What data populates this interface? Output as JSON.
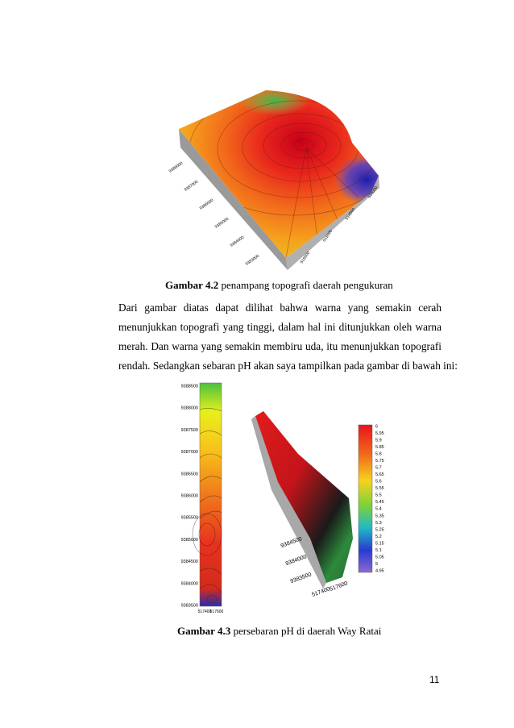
{
  "figure_4_2": {
    "axis_labels_left": [
      "9388000",
      "9387000",
      "9386000",
      "9385000",
      "9384000",
      "9383000"
    ],
    "axis_labels_bottom": [
      "515500",
      "515000",
      "514500",
      "514000"
    ],
    "caption_label": "Gambar 4.2",
    "caption_text": "penampang topografi daerah pengukuran"
  },
  "paragraph": {
    "lines": [
      "Dari gambar diatas dapat dilihat bahwa warna yang semakin cerah",
      "menunjukkan topografi yang tinggi, dalam hal ini ditunjukkan oleh warna",
      "merah. Dan warna yang semakin membiru uda, itu menunjukkan topografi",
      "rendah. Sedangkan sebaran pH akan saya tampilkan pada gambar di bawah ini:"
    ]
  },
  "figure_4_3": {
    "map_y_labels": [
      "9388500",
      "9388000",
      "9387500",
      "9387000",
      "9386500",
      "9386000",
      "9385500",
      "9385000",
      "9384500",
      "9384000",
      "9383500"
    ],
    "map_x_labels": [
      "517400",
      "517600"
    ],
    "surface_y_labels": [
      "9384500",
      "9384000",
      "9383500"
    ],
    "surface_x_labels": [
      "517400",
      "517600"
    ],
    "legend_labels": [
      "6",
      "5.95",
      "5.9",
      "5.85",
      "5.8",
      "5.75",
      "5.7",
      "5.65",
      "5.6",
      "5.55",
      "5.5",
      "5.45",
      "5.4",
      "5.35",
      "5.3",
      "5.25",
      "5.2",
      "5.15",
      "5.1",
      "5.05",
      "5",
      "4.95"
    ],
    "caption_label": "Gambar 4.3",
    "caption_text": "persebaran pH di daerah Way Ratai"
  },
  "page_number": "11"
}
